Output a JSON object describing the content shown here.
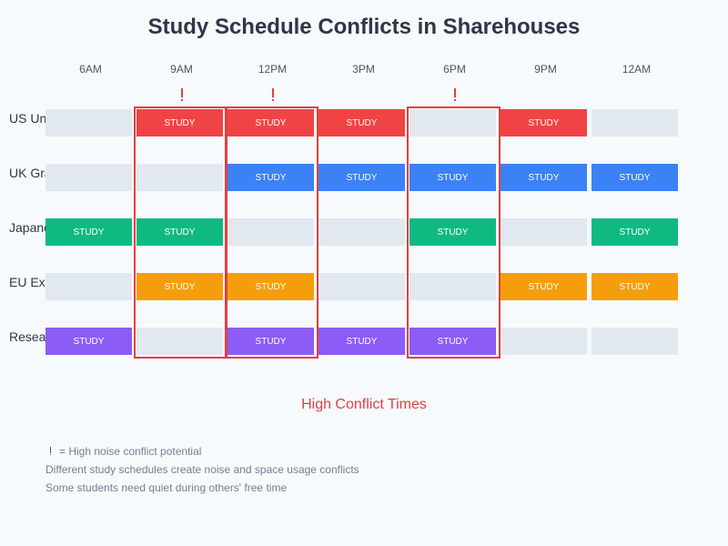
{
  "title": "Study Schedule Conflicts in Sharehouses",
  "times": [
    "6AM",
    "9AM",
    "12PM",
    "3PM",
    "6PM",
    "9PM",
    "12AM"
  ],
  "cell_label": "STUDY",
  "residents": [
    {
      "name": "US Undergrad",
      "color": "#f04444",
      "study": [
        false,
        true,
        true,
        true,
        false,
        true,
        false
      ]
    },
    {
      "name": "UK Grad",
      "color": "#3b82f6",
      "study": [
        false,
        false,
        true,
        true,
        true,
        true,
        true
      ]
    },
    {
      "name": "Japanese",
      "color": "#10b981",
      "study": [
        true,
        true,
        false,
        false,
        true,
        false,
        true
      ]
    },
    {
      "name": "EU Exchange",
      "color": "#f59e0b",
      "study": [
        false,
        true,
        true,
        false,
        false,
        true,
        true
      ]
    },
    {
      "name": "Researcher",
      "color": "#8b5cf6",
      "study": [
        true,
        false,
        true,
        true,
        true,
        false,
        false
      ]
    }
  ],
  "empty_color": "#e2e8f0",
  "conflict_color": "#e53e3e",
  "high_noise_slots": [
    1,
    2,
    4
  ],
  "conflict_caption": "High Conflict Times",
  "legend": {
    "icon": "exclamation-icon",
    "text": "= High noise conflict potential"
  },
  "notes": [
    "Different study schedules create noise and space usage conflicts",
    "Some students need quiet during others' free time"
  ]
}
